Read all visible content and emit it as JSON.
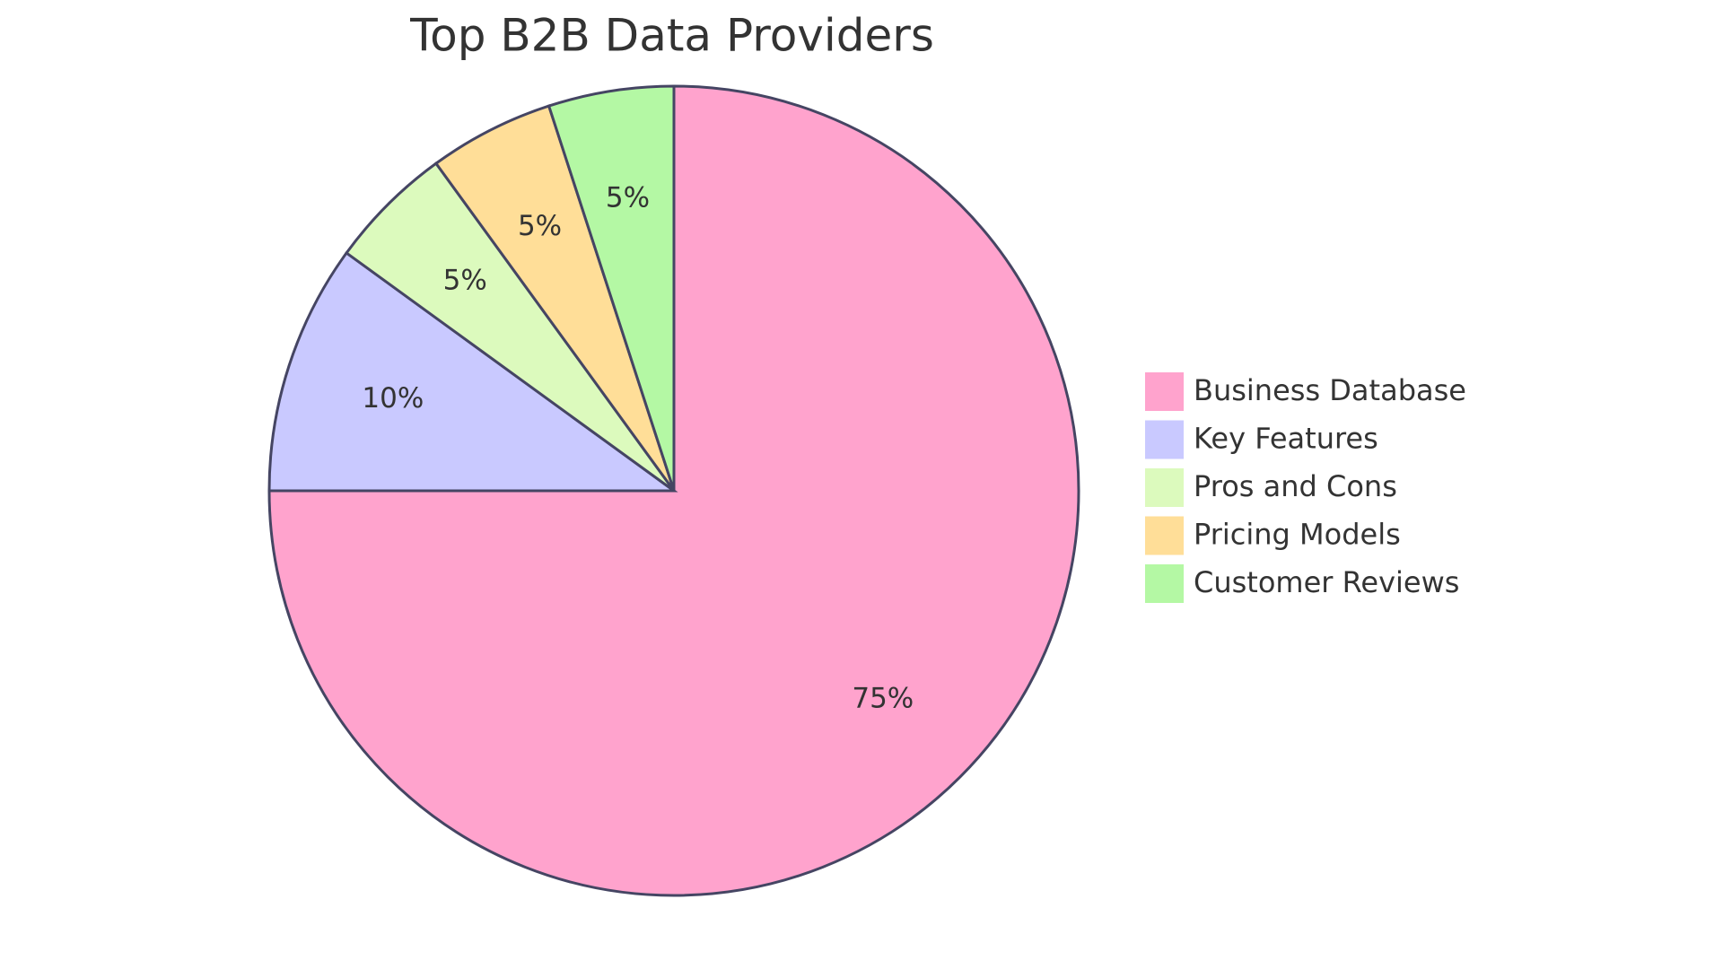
{
  "chart_data": {
    "type": "pie",
    "title": "Top B2B Data Providers",
    "categories": [
      "Business Database",
      "Key Features",
      "Pros and Cons",
      "Pricing Models",
      "Customer Reviews"
    ],
    "values": [
      75,
      10,
      5,
      5,
      5
    ],
    "value_labels": [
      "75%",
      "10%",
      "5%",
      "5%",
      "5%"
    ],
    "colors": [
      "#ffa3cd",
      "#c9c9ff",
      "#dcfabd",
      "#ffde98",
      "#b4f8a4"
    ],
    "legend": "right"
  }
}
